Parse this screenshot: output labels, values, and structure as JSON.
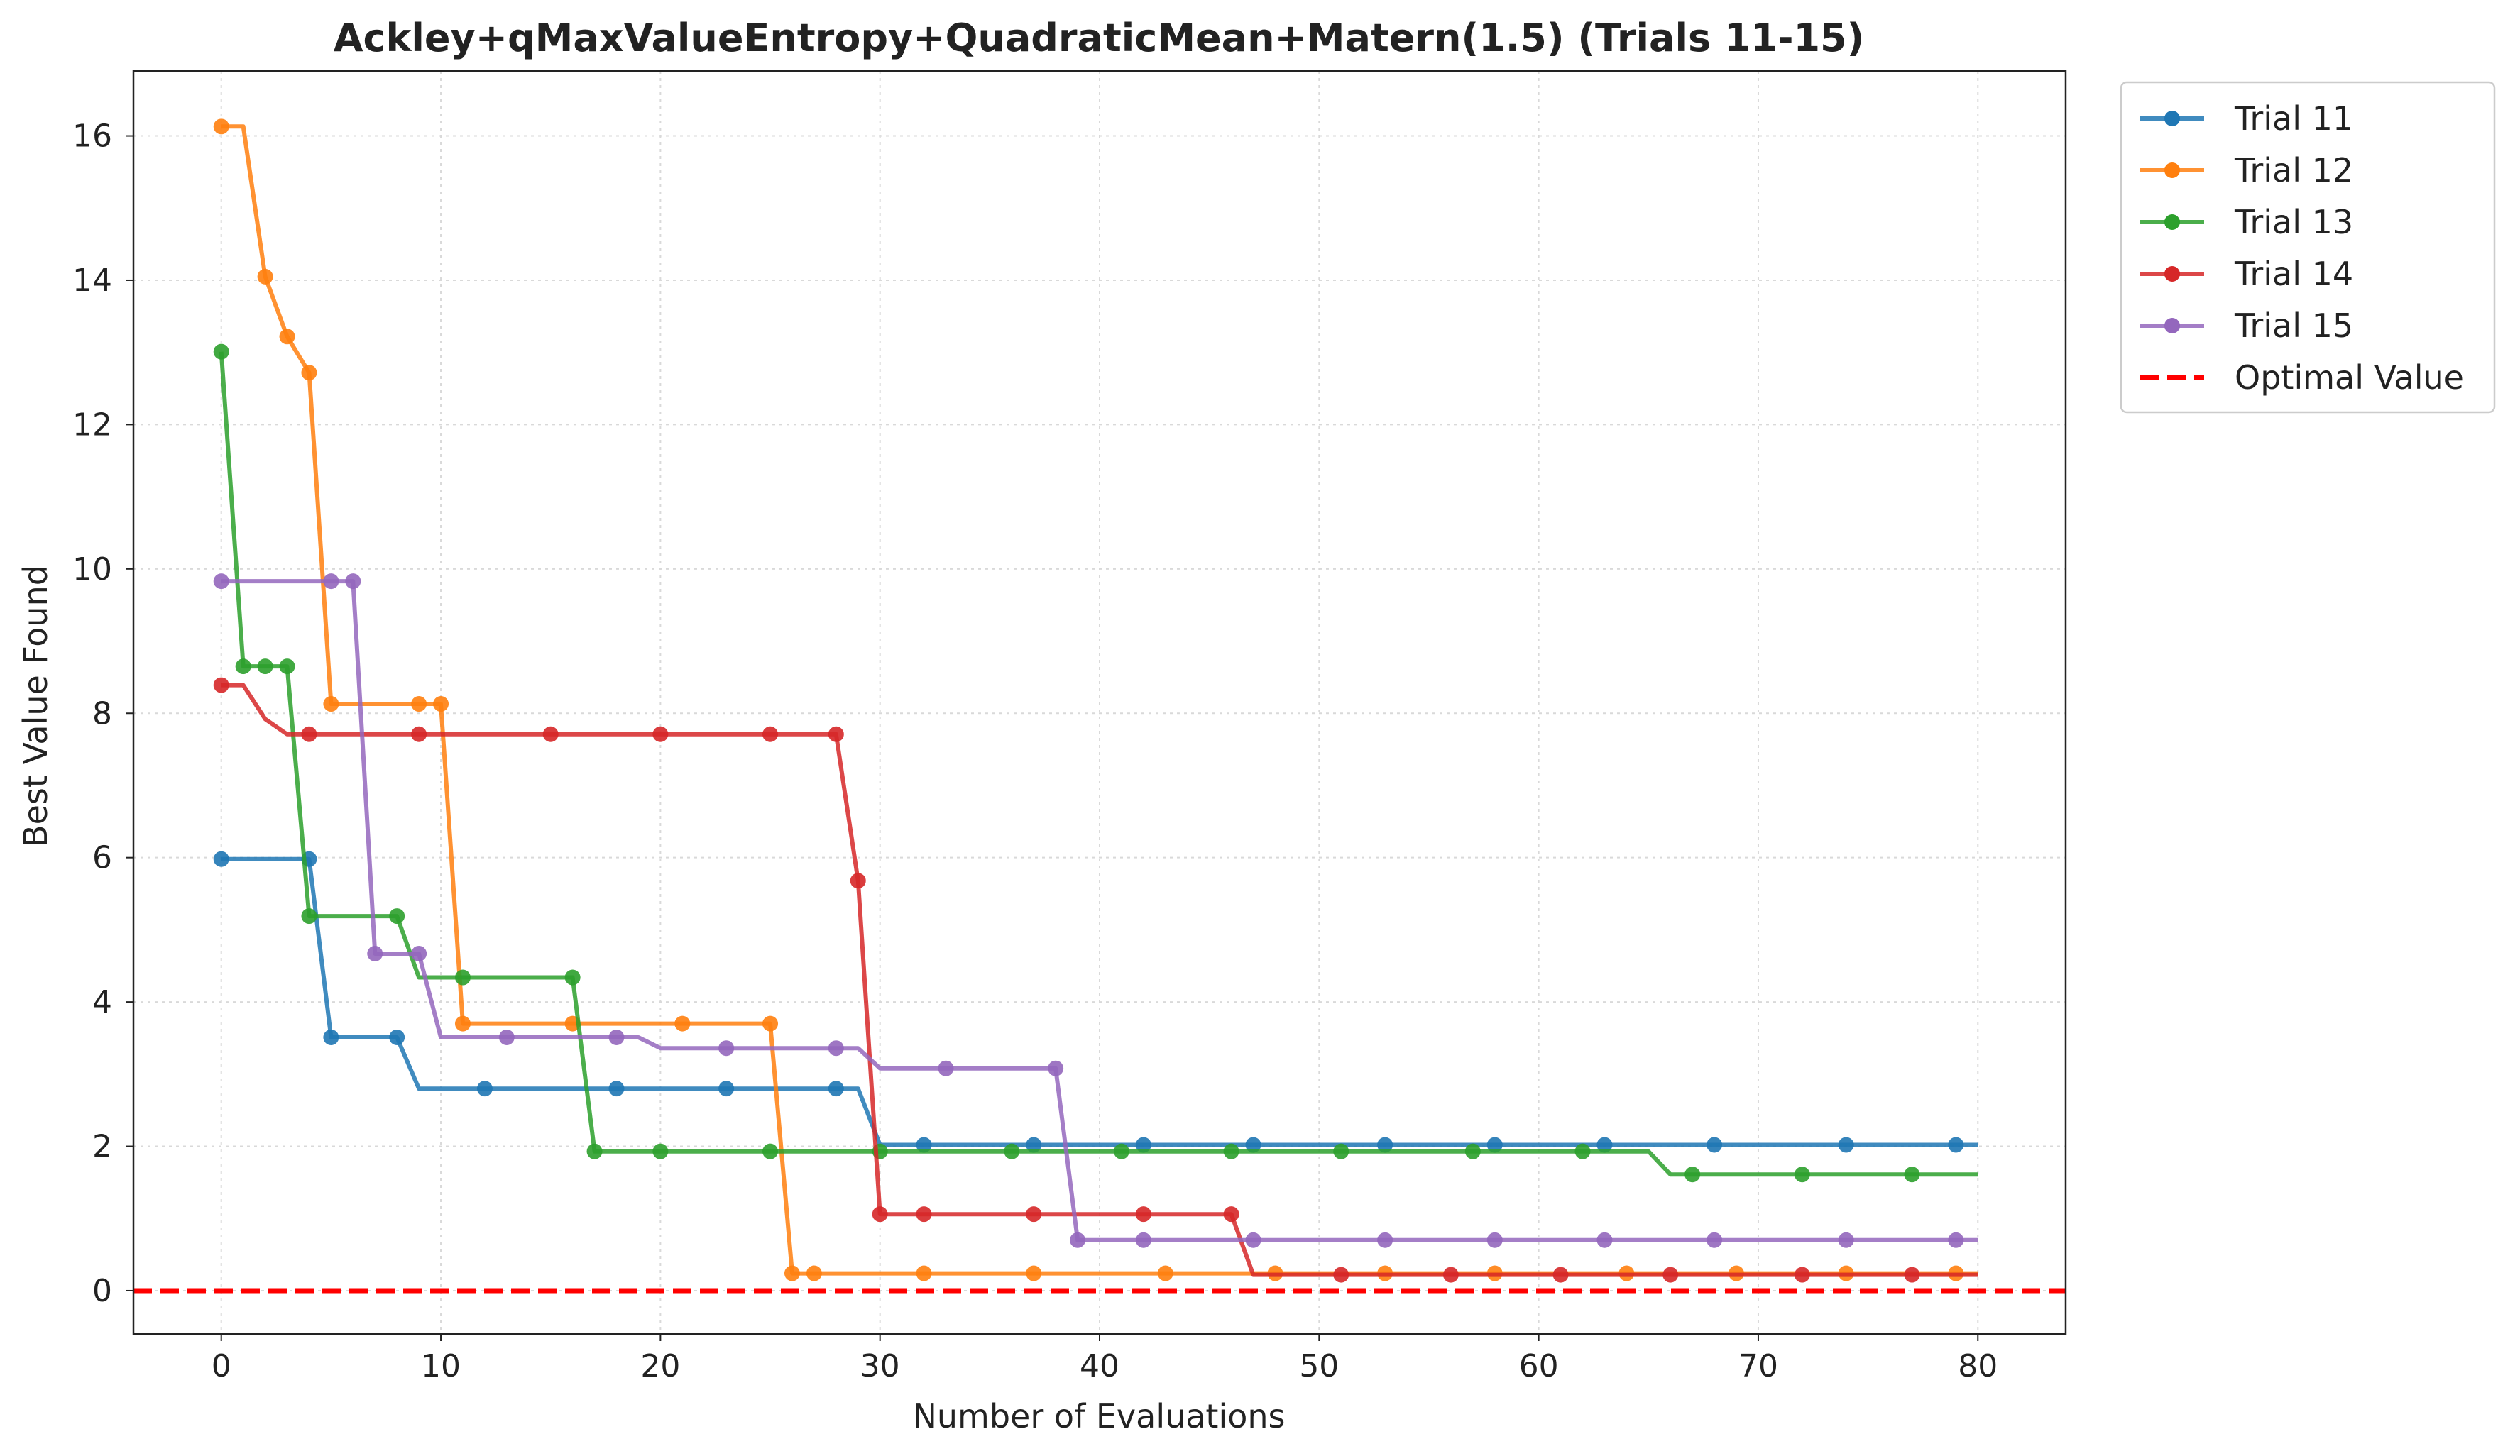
{
  "chart_data": {
    "type": "line",
    "title": "Ackley+qMaxValueEntropy+QuadraticMean+Matern(1.5) (Trials 11-15)",
    "xlabel": "Number of Evaluations",
    "ylabel": "Best Value Found",
    "xlim": [
      -4,
      84
    ],
    "ylim": [
      -0.6,
      16.9
    ],
    "xticks": [
      0,
      10,
      20,
      30,
      40,
      50,
      60,
      70,
      80
    ],
    "yticks": [
      0,
      2,
      4,
      6,
      8,
      10,
      12,
      14,
      16
    ],
    "grid": true,
    "legend_position": "outside-top-right",
    "series": [
      {
        "name": "Trial 11",
        "color": "#1f77b4",
        "x": [
          0,
          4,
          5,
          8,
          9,
          29,
          30,
          80
        ],
        "y": [
          5.98,
          5.98,
          3.51,
          3.51,
          2.8,
          2.8,
          2.02,
          2.02
        ],
        "markers_x": [
          0,
          4,
          5,
          8,
          12,
          18,
          23,
          28,
          32,
          37,
          42,
          47,
          53,
          58,
          63,
          68,
          74,
          79
        ]
      },
      {
        "name": "Trial 12",
        "color": "#ff7f0e",
        "x": [
          0,
          1,
          2,
          3,
          4,
          5,
          10,
          11,
          25,
          26,
          80
        ],
        "y": [
          16.13,
          16.13,
          14.05,
          13.22,
          12.72,
          8.13,
          8.13,
          3.7,
          3.7,
          0.24,
          0.24
        ],
        "markers_x": [
          0,
          2,
          3,
          4,
          5,
          9,
          10,
          11,
          16,
          21,
          25,
          26,
          27,
          32,
          37,
          43,
          48,
          53,
          58,
          64,
          69,
          74,
          79
        ]
      },
      {
        "name": "Trial 13",
        "color": "#2ca02c",
        "x": [
          0,
          1,
          3,
          4,
          8,
          9,
          16,
          17,
          65,
          66,
          80
        ],
        "y": [
          13.01,
          8.65,
          8.65,
          5.19,
          5.19,
          4.34,
          4.34,
          1.93,
          1.93,
          1.61,
          1.61
        ],
        "markers_x": [
          0,
          1,
          2,
          3,
          4,
          8,
          11,
          16,
          17,
          20,
          25,
          30,
          36,
          41,
          46,
          51,
          57,
          62,
          67,
          72,
          77
        ]
      },
      {
        "name": "Trial 14",
        "color": "#d62728",
        "x": [
          0,
          1,
          2,
          3,
          28,
          29,
          30,
          46,
          47,
          80
        ],
        "y": [
          8.39,
          8.39,
          7.92,
          7.71,
          7.71,
          5.68,
          1.06,
          1.06,
          0.22,
          0.22
        ],
        "markers_x": [
          0,
          4,
          9,
          15,
          20,
          25,
          28,
          29,
          30,
          32,
          37,
          42,
          46,
          51,
          56,
          61,
          66,
          72,
          77
        ]
      },
      {
        "name": "Trial 15",
        "color": "#9467bd",
        "x": [
          0,
          6,
          7,
          9,
          10,
          19,
          20,
          29,
          30,
          38,
          39,
          80
        ],
        "y": [
          9.83,
          9.83,
          4.67,
          4.67,
          3.51,
          3.51,
          3.36,
          3.36,
          3.08,
          3.08,
          0.7,
          0.7
        ],
        "markers_x": [
          0,
          5,
          6,
          7,
          9,
          13,
          18,
          23,
          28,
          33,
          38,
          39,
          42,
          47,
          53,
          58,
          63,
          68,
          74,
          79
        ]
      }
    ],
    "reference_line": {
      "name": "Optimal Value",
      "y": 0,
      "color": "#ff0000",
      "style": "dashed"
    }
  }
}
